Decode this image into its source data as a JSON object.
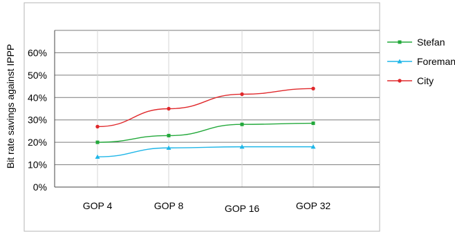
{
  "chart_data": {
    "type": "line",
    "title": "",
    "xlabel": "",
    "ylabel": "Bit rate savings against IPPP",
    "categories": [
      "GOP 4",
      "GOP 8",
      "GOP 16",
      "GOP 32"
    ],
    "y_ticks": [
      "0%",
      "10%",
      "20%",
      "30%",
      "40%",
      "50%",
      "60%"
    ],
    "ylim": [
      0,
      70
    ],
    "grid": true,
    "legend_position": "right",
    "series": [
      {
        "name": "Stefan",
        "color": "#22a83a",
        "marker": "square",
        "values": [
          20,
          23,
          28,
          28.5
        ]
      },
      {
        "name": "Foreman",
        "color": "#1fb6e8",
        "marker": "triangle",
        "values": [
          13.5,
          17.5,
          18,
          18
        ]
      },
      {
        "name": "City",
        "color": "#e0282b",
        "marker": "circle",
        "values": [
          27,
          35,
          41.5,
          44
        ]
      }
    ]
  }
}
